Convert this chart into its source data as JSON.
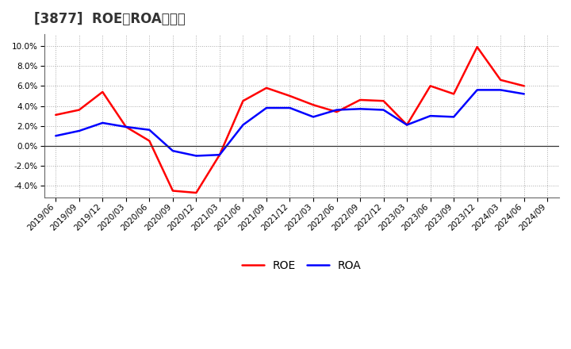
{
  "title": "[3877]  ROE、ROAの推移",
  "x_labels": [
    "2019/06",
    "2019/09",
    "2019/12",
    "2020/03",
    "2020/06",
    "2020/09",
    "2020/12",
    "2021/03",
    "2021/06",
    "2021/09",
    "2021/12",
    "2022/03",
    "2022/06",
    "2022/09",
    "2022/12",
    "2023/03",
    "2023/06",
    "2023/09",
    "2023/12",
    "2024/03",
    "2024/06",
    "2024/09"
  ],
  "roe": [
    3.1,
    3.6,
    5.4,
    1.9,
    0.5,
    -4.5,
    -4.7,
    -0.9,
    4.5,
    5.8,
    5.0,
    4.1,
    3.4,
    4.6,
    4.5,
    2.1,
    6.0,
    5.2,
    9.9,
    6.6,
    6.0,
    null
  ],
  "roa": [
    1.0,
    1.5,
    2.3,
    1.9,
    1.6,
    -0.5,
    -1.0,
    -0.9,
    2.1,
    3.8,
    3.8,
    2.9,
    3.6,
    3.7,
    3.6,
    2.1,
    3.0,
    2.9,
    5.6,
    5.6,
    5.2,
    null
  ],
  "roe_color": "#ff0000",
  "roa_color": "#0000ff",
  "ylim": [
    -5.2,
    11.2
  ],
  "yticks": [
    -4.0,
    -2.0,
    0.0,
    2.0,
    4.0,
    6.0,
    8.0,
    10.0
  ],
  "bg_color": "#ffffff",
  "plot_bg_color": "#ffffff",
  "grid_color": "#aaaaaa",
  "zero_line_color": "#333333",
  "title_fontsize": 12,
  "axis_fontsize": 7.5,
  "legend_fontsize": 10
}
